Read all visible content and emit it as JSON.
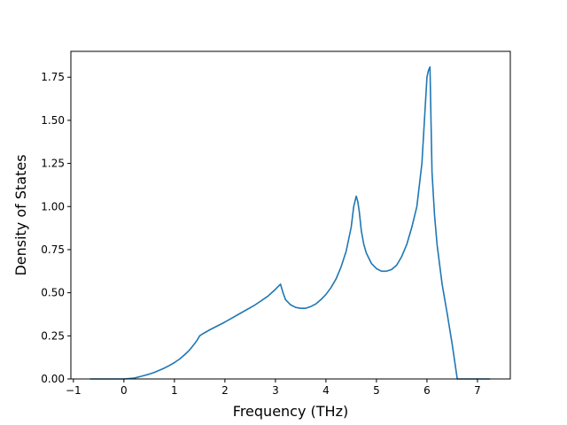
{
  "chart_data": {
    "type": "line",
    "title": "",
    "xlabel": "Frequency (THz)",
    "ylabel": "Density of States",
    "xlim": [
      -1.05,
      7.65
    ],
    "ylim": [
      0.0,
      1.9
    ],
    "xticks": [
      -1,
      0,
      1,
      2,
      3,
      4,
      5,
      6,
      7
    ],
    "xtick_labels": [
      "−1",
      "0",
      "1",
      "2",
      "3",
      "4",
      "5",
      "6",
      "7"
    ],
    "yticks": [
      0.0,
      0.25,
      0.5,
      0.75,
      1.0,
      1.25,
      1.5,
      1.75
    ],
    "ytick_labels": [
      "0.00",
      "0.25",
      "0.50",
      "0.75",
      "1.00",
      "1.25",
      "1.50",
      "1.75"
    ],
    "grid": false,
    "legend": "none",
    "series": [
      {
        "color": "#1f77b4",
        "x": [
          -0.67,
          0.0,
          0.2,
          0.3,
          0.4,
          0.5,
          0.6,
          0.7,
          0.8,
          0.9,
          1.0,
          1.1,
          1.2,
          1.3,
          1.4,
          1.45,
          1.5,
          1.55,
          1.7,
          2.0,
          2.3,
          2.6,
          2.85,
          3.0,
          3.05,
          3.1,
          3.15,
          3.2,
          3.3,
          3.4,
          3.5,
          3.6,
          3.7,
          3.8,
          3.9,
          4.0,
          4.1,
          4.2,
          4.3,
          4.4,
          4.5,
          4.55,
          4.6,
          4.63,
          4.66,
          4.7,
          4.75,
          4.8,
          4.9,
          5.0,
          5.1,
          5.2,
          5.3,
          5.4,
          5.5,
          5.6,
          5.7,
          5.8,
          5.9,
          5.95,
          6.0,
          6.03,
          6.06,
          6.08,
          6.1,
          6.15,
          6.2,
          6.3,
          6.4,
          6.5,
          6.55,
          6.6,
          7.0,
          7.25
        ],
        "y": [
          0.0,
          0.0,
          0.005,
          0.012,
          0.02,
          0.028,
          0.038,
          0.05,
          0.063,
          0.078,
          0.095,
          0.115,
          0.14,
          0.168,
          0.205,
          0.225,
          0.25,
          0.26,
          0.285,
          0.33,
          0.38,
          0.43,
          0.48,
          0.52,
          0.535,
          0.55,
          0.5,
          0.46,
          0.43,
          0.415,
          0.41,
          0.41,
          0.42,
          0.435,
          0.46,
          0.49,
          0.53,
          0.58,
          0.65,
          0.74,
          0.88,
          1.0,
          1.06,
          1.03,
          0.97,
          0.86,
          0.78,
          0.73,
          0.67,
          0.64,
          0.625,
          0.625,
          0.635,
          0.66,
          0.71,
          0.78,
          0.88,
          1.0,
          1.25,
          1.5,
          1.75,
          1.79,
          1.81,
          1.5,
          1.2,
          0.95,
          0.78,
          0.55,
          0.38,
          0.2,
          0.1,
          0.0,
          0.0,
          0.0
        ]
      }
    ]
  }
}
